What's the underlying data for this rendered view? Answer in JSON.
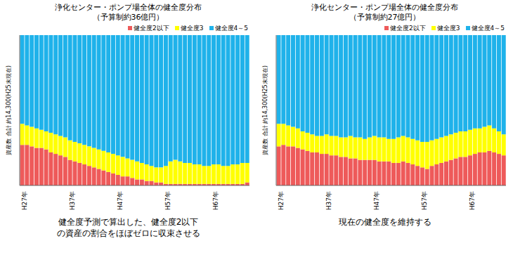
{
  "chart_data": [
    {
      "type": "bar",
      "title": "浄化センター・ポンプ場全体の健全度分布",
      "subtitle": "（予算制約36億円）",
      "y_label": "資産数 合計 約14,300(H25末現在)",
      "annotation": [
        "健全度予測で算出した、健全度2以下",
        "の資産の割合をほぼゼロに収束させる"
      ],
      "stacked": true,
      "legend": "top right",
      "tick_labels": "x",
      "ylim": [
        0,
        100
      ],
      "categories": [
        "H27年",
        null,
        null,
        null,
        null,
        null,
        null,
        null,
        null,
        null,
        "H37年",
        null,
        null,
        null,
        null,
        null,
        null,
        null,
        null,
        null,
        "H47年",
        null,
        null,
        null,
        null,
        null,
        null,
        null,
        null,
        null,
        "H57年",
        null,
        null,
        null,
        null,
        null,
        null,
        null,
        null,
        null,
        "H67年",
        null,
        null,
        null,
        null,
        null,
        null,
        null
      ],
      "series": [
        {
          "name": "健全度2以下",
          "color": "#ee5a5a",
          "values": [
            27,
            27,
            26,
            25,
            25,
            24,
            22,
            21,
            20,
            19,
            17,
            16,
            15,
            14,
            13,
            12,
            11,
            10,
            9,
            8,
            7,
            6,
            6,
            5,
            4,
            4,
            3,
            3,
            2,
            2,
            1,
            1,
            1,
            1,
            1,
            1,
            1,
            1,
            1,
            1,
            1,
            1,
            1,
            1,
            1,
            1,
            1,
            2
          ]
        },
        {
          "name": "健全度3",
          "color": "#ffff00",
          "values": [
            14,
            13,
            13,
            13,
            12,
            12,
            13,
            13,
            13,
            13,
            13,
            13,
            13,
            13,
            13,
            13,
            13,
            13,
            13,
            13,
            13,
            13,
            12,
            12,
            12,
            11,
            11,
            10,
            10,
            10,
            12,
            15,
            16,
            15,
            14,
            14,
            13,
            13,
            12,
            12,
            13,
            13,
            12,
            12,
            13,
            13,
            14,
            13
          ]
        },
        {
          "name": "健全度4～5",
          "color": "#1fb2ea",
          "values": [
            59,
            60,
            61,
            62,
            63,
            64,
            65,
            66,
            67,
            68,
            70,
            71,
            72,
            73,
            74,
            75,
            76,
            77,
            78,
            79,
            80,
            81,
            82,
            83,
            84,
            85,
            86,
            87,
            88,
            88,
            87,
            84,
            83,
            84,
            85,
            85,
            86,
            86,
            87,
            87,
            86,
            86,
            87,
            87,
            86,
            86,
            85,
            85
          ]
        }
      ]
    },
    {
      "type": "bar",
      "title": "浄化センター・ポンプ場全体の健全度分布",
      "subtitle": "（予算制約27億円）",
      "y_label": "資産数 合計 約14,300(H25末現在)",
      "annotation": [
        "現在の健全度を維持する"
      ],
      "stacked": true,
      "legend": "top right",
      "tick_labels": "x",
      "ylim": [
        0,
        100
      ],
      "categories": [
        "H27年",
        null,
        null,
        null,
        null,
        null,
        null,
        null,
        null,
        null,
        "H37年",
        null,
        null,
        null,
        null,
        null,
        null,
        null,
        null,
        null,
        "H47年",
        null,
        null,
        null,
        null,
        null,
        null,
        null,
        null,
        null,
        "H57年",
        null,
        null,
        null,
        null,
        null,
        null,
        null,
        null,
        null,
        "H67年",
        null,
        null,
        null,
        null,
        null,
        null,
        null
      ],
      "series": [
        {
          "name": "健全度2以下",
          "color": "#ee5a5a",
          "values": [
            26,
            27,
            26,
            26,
            25,
            24,
            23,
            22,
            22,
            21,
            21,
            20,
            20,
            19,
            19,
            18,
            18,
            17,
            17,
            17,
            17,
            16,
            16,
            16,
            15,
            15,
            16,
            15,
            14,
            13,
            12,
            11,
            13,
            14,
            15,
            16,
            17,
            18,
            19,
            19,
            20,
            21,
            22,
            22,
            23,
            22,
            21,
            20
          ]
        },
        {
          "name": "健全度3",
          "color": "#ffff00",
          "values": [
            15,
            14,
            14,
            13,
            13,
            12,
            12,
            12,
            11,
            12,
            13,
            13,
            13,
            13,
            13,
            15,
            14,
            15,
            14,
            15,
            16,
            16,
            16,
            15,
            16,
            17,
            17,
            17,
            17,
            17,
            17,
            18,
            17,
            17,
            17,
            17,
            17,
            17,
            17,
            17,
            17,
            17,
            16,
            17,
            17,
            16,
            15,
            14
          ]
        },
        {
          "name": "健全度4～5",
          "color": "#1fb2ea",
          "values": [
            59,
            59,
            60,
            61,
            62,
            64,
            65,
            66,
            67,
            67,
            66,
            67,
            67,
            68,
            68,
            67,
            68,
            68,
            69,
            68,
            67,
            68,
            68,
            69,
            69,
            68,
            67,
            68,
            69,
            70,
            71,
            71,
            70,
            69,
            68,
            67,
            66,
            65,
            64,
            64,
            63,
            62,
            62,
            61,
            60,
            62,
            64,
            66
          ]
        }
      ]
    }
  ]
}
